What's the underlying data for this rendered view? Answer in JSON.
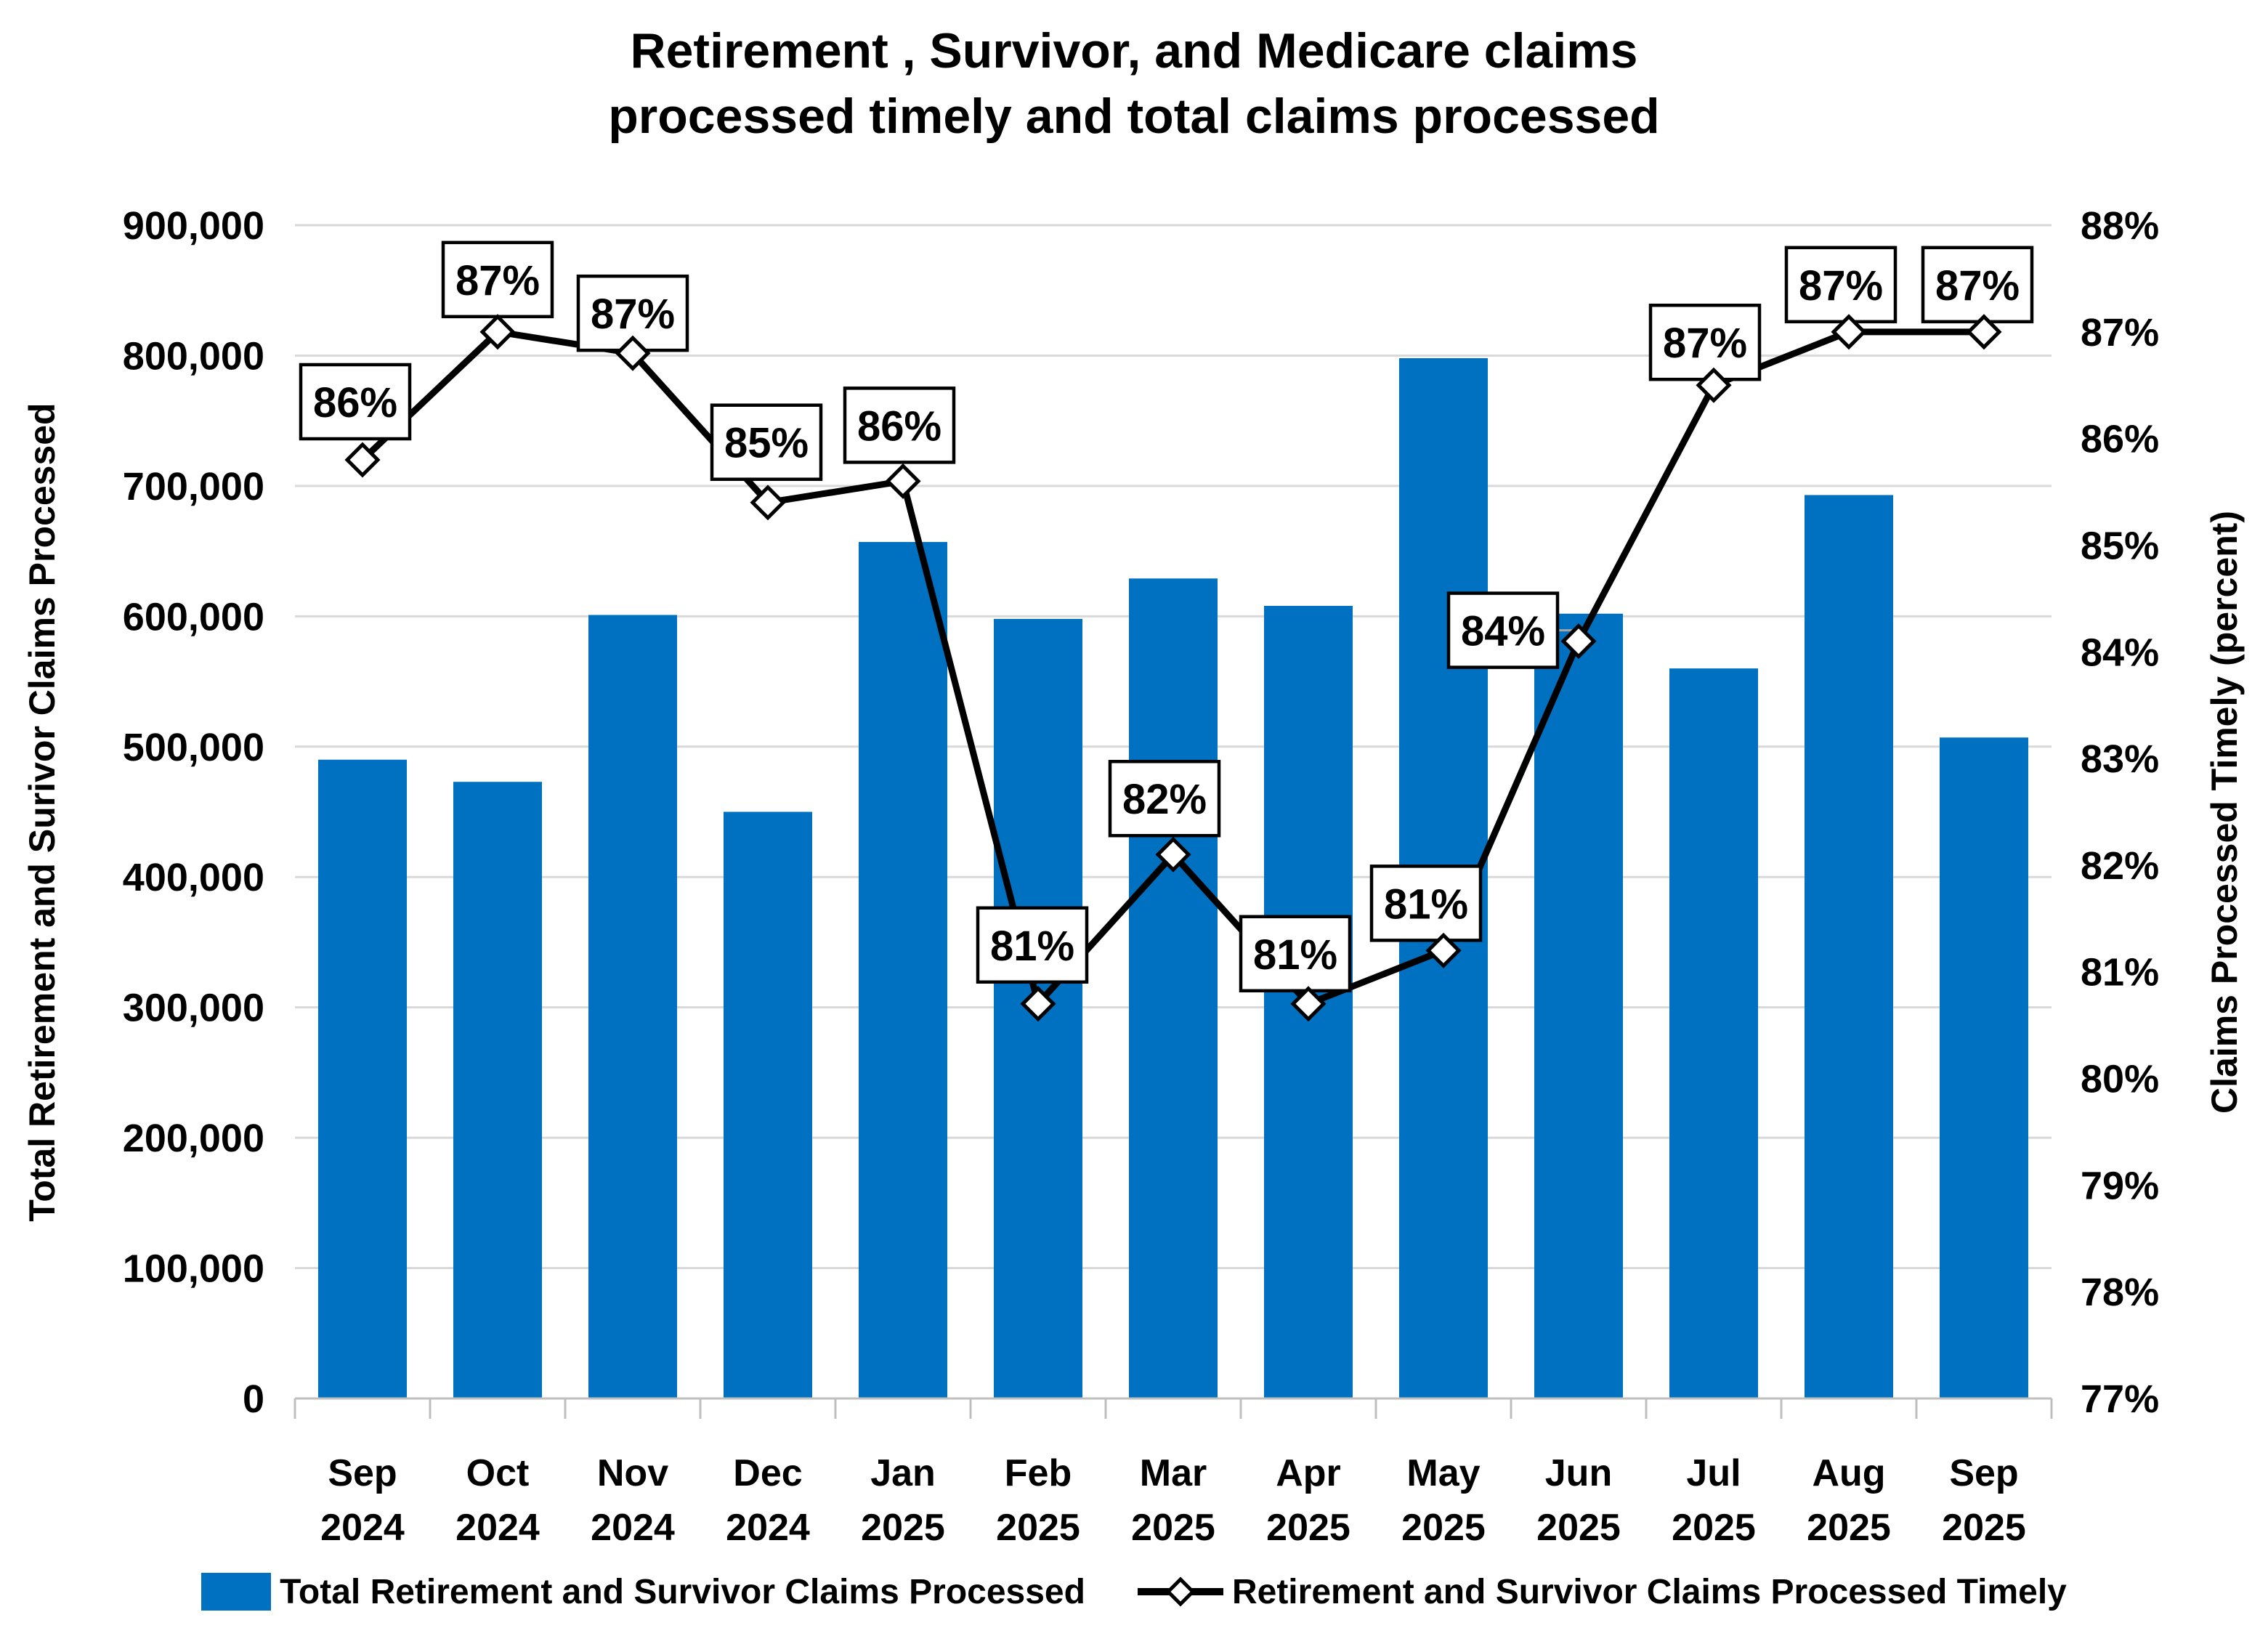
{
  "title_lines": [
    "Retirement , Survivor, and Medicare claims",
    "processed timely and total claims processed"
  ],
  "left_axis": {
    "title": "Total Retirement and Surivor Claims Processed",
    "ticks": [
      "900,000",
      "800,000",
      "700,000",
      "600,000",
      "500,000",
      "400,000",
      "300,000",
      "200,000",
      "100,000",
      "0"
    ]
  },
  "right_axis": {
    "title": "Claims Processed Timely (percent)",
    "ticks": [
      "88%",
      "87%",
      "86%",
      "85%",
      "84%",
      "83%",
      "82%",
      "81%",
      "80%",
      "79%",
      "78%",
      "77%"
    ]
  },
  "legend": {
    "items": [
      {
        "label": "Total Retirement and Survivor Claims Processed",
        "swatch": "bar-swatch",
        "color": "#0070C0"
      },
      {
        "label": "Retirement and Survivor Claims Processed Timely",
        "swatch": "line-diamond-swatch",
        "color": "#000000"
      }
    ]
  },
  "colors": {
    "bar": "#0070C0",
    "line": "#000000",
    "marker_fill": "#FFFFFF",
    "grid": "#D9D9D9",
    "axis": "#BFBFBF",
    "leader": "#A6A6A6",
    "label_box_fill": "#FFFFFF",
    "label_box_border": "#000000",
    "background": "#FFFFFF"
  },
  "chart_data": {
    "type": "combo",
    "subtypes": [
      "bar",
      "line"
    ],
    "categories": [
      "Sep 2024",
      "Oct 2024",
      "Nov 2024",
      "Dec 2024",
      "Jan 2025",
      "Feb 2025",
      "Mar 2025",
      "Apr 2025",
      "May 2025",
      "Jun 2025",
      "Jul 2025",
      "Aug 2025",
      "Sep 2025"
    ],
    "series": [
      {
        "name": "Total Retirement and Survivor Claims Processed",
        "type": "bar",
        "axis": "left",
        "color": "#0070C0",
        "values": [
          490000,
          473000,
          601000,
          450000,
          657000,
          598000,
          629000,
          608000,
          798000,
          602000,
          560000,
          693000,
          507000
        ]
      },
      {
        "name": "Retirement and Survivor Claims Processed Timely",
        "type": "line",
        "axis": "right",
        "color": "#000000",
        "marker": "diamond",
        "values": [
          85.8,
          87.0,
          86.8,
          85.4,
          85.6,
          80.7,
          82.1,
          80.7,
          81.2,
          84.1,
          86.5,
          87.0,
          87.0
        ],
        "point_labels": [
          "86%",
          "87%",
          "87%",
          "85%",
          "86%",
          "81%",
          "82%",
          "81%",
          "81%",
          "84%",
          "87%",
          "87%",
          "87%"
        ],
        "label_offsets": [
          [
            -10,
            -80
          ],
          [
            0,
            -72
          ],
          [
            0,
            -55
          ],
          [
            -2,
            -83
          ],
          [
            -5,
            -77
          ],
          [
            -8,
            -81
          ],
          [
            -12,
            -77
          ],
          [
            -18,
            -69
          ],
          [
            -24,
            -65
          ],
          [
            -104,
            -15
          ],
          [
            -12,
            -59
          ],
          [
            -11,
            -65
          ],
          [
            -9,
            -65
          ]
        ],
        "label_leader_indexes": [
          9
        ]
      }
    ],
    "left_ylim": [
      0,
      900000
    ],
    "right_ylim": [
      77,
      88
    ],
    "left_tick_step": 100000,
    "right_tick_step": 1,
    "grid": "horizontal",
    "legend_position": "bottom",
    "title": "Retirement , Survivor, and Medicare claims processed timely and total claims processed",
    "left_ylabel": "Total Retirement and Surivor Claims Processed",
    "right_ylabel": "Claims Processed Timely (percent)"
  }
}
